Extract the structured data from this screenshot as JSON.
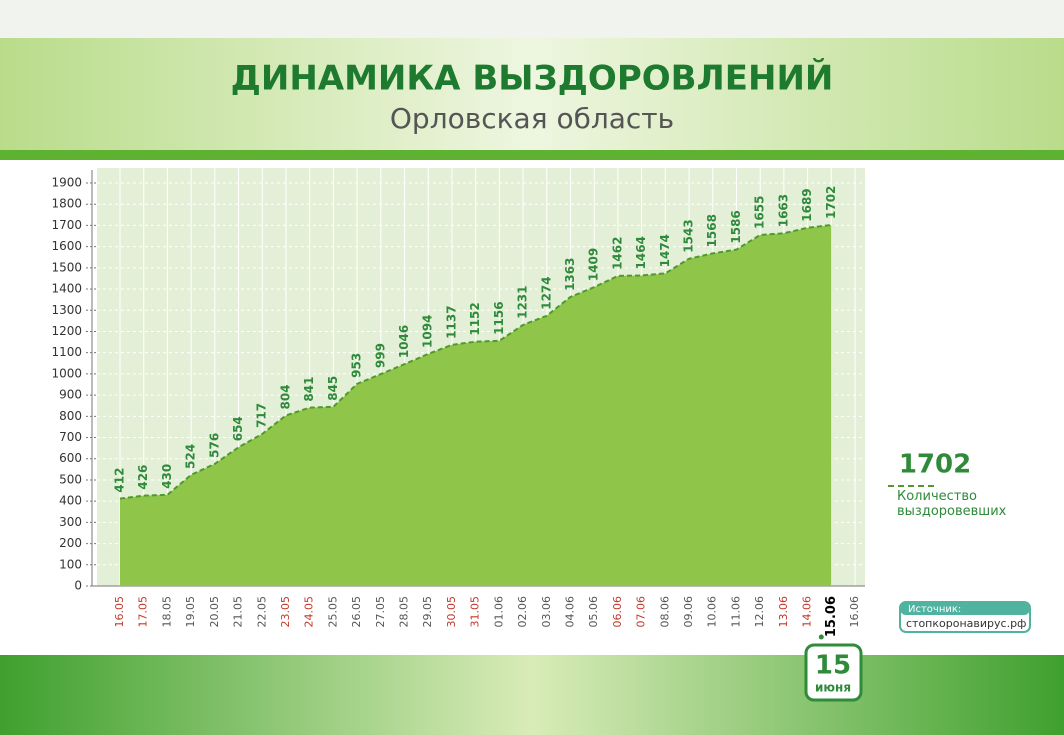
{
  "header": {
    "title": "ДИНАМИКА ВЫЗДОРОВЛЕНИЙ",
    "subtitle": "Орловская область"
  },
  "chart_data": {
    "type": "area",
    "categories": [
      "16.05",
      "17.05",
      "18.05",
      "19.05",
      "20.05",
      "21.05",
      "22.05",
      "23.05",
      "24.05",
      "25.05",
      "26.05",
      "27.05",
      "28.05",
      "29.05",
      "30.05",
      "31.05",
      "01.06",
      "02.06",
      "03.06",
      "04.06",
      "05.06",
      "06.06",
      "07.06",
      "08.06",
      "09.06",
      "10.06",
      "11.06",
      "12.06",
      "13.06",
      "14.06",
      "15.06",
      "16.06"
    ],
    "category_colors": [
      "#c0392b",
      "#c0392b",
      "#555555",
      "#555555",
      "#555555",
      "#555555",
      "#555555",
      "#c0392b",
      "#c0392b",
      "#555555",
      "#555555",
      "#555555",
      "#555555",
      "#555555",
      "#c0392b",
      "#c0392b",
      "#555555",
      "#555555",
      "#555555",
      "#555555",
      "#555555",
      "#c0392b",
      "#c0392b",
      "#555555",
      "#555555",
      "#555555",
      "#555555",
      "#555555",
      "#c0392b",
      "#c0392b",
      "#000000",
      "#555555"
    ],
    "values": [
      412,
      426,
      430,
      524,
      576,
      654,
      717,
      804,
      841,
      845,
      953,
      999,
      1046,
      1094,
      1137,
      1152,
      1156,
      1231,
      1274,
      1363,
      1409,
      1462,
      1464,
      1474,
      1543,
      1568,
      1586,
      1655,
      1663,
      1689,
      1702,
      null
    ],
    "color": "#8fc64a",
    "line_color": "#4f9a2c",
    "label_color": "#2f8a3a",
    "ylim": [
      0,
      1900
    ],
    "yticks": [
      0,
      100,
      200,
      300,
      400,
      500,
      600,
      700,
      800,
      900,
      1000,
      1100,
      1200,
      1300,
      1400,
      1500,
      1600,
      1700,
      1800,
      1900
    ],
    "grid": true,
    "legend": {
      "value": 1702,
      "label": "Количество выздоровевших"
    }
  },
  "source": {
    "label": "Источник:",
    "text": "стопкоронавирус.рф"
  },
  "date_badge": {
    "day": "15",
    "month": "июня"
  }
}
